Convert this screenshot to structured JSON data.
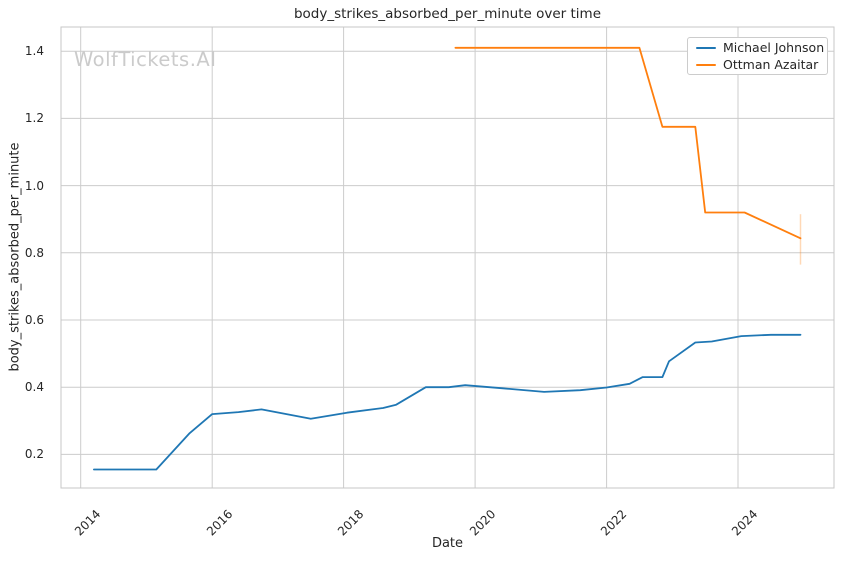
{
  "watermark": "WolfTickets.AI",
  "chart_data": {
    "type": "line",
    "title": "body_strikes_absorbed_per_minute over time",
    "xlabel": "Date",
    "ylabel": "body_strikes_absorbed_per_minute",
    "xlim": [
      2013.7,
      2025.46
    ],
    "ylim": [
      0.1,
      1.472
    ],
    "x_ticks": [
      2014,
      2016,
      2018,
      2020,
      2022,
      2024
    ],
    "x_tick_labels": [
      "2014",
      "2016",
      "2018",
      "2020",
      "2022",
      "2024"
    ],
    "y_ticks": [
      0.2,
      0.4,
      0.6,
      0.8,
      1.0,
      1.2,
      1.4
    ],
    "y_tick_labels": [
      "0.2",
      "0.4",
      "0.6",
      "0.8",
      "1.0",
      "1.2",
      "1.4"
    ],
    "grid": true,
    "legend_position": "upper right",
    "style": {
      "grid_color": "#cccccc",
      "spine_color": "#c7c7c7",
      "text_color": "#262626",
      "watermark_color": "#cbcbcb",
      "background": "#ffffff"
    },
    "series": [
      {
        "name": "Michael Johnson",
        "color": "#1f77b4",
        "points": [
          [
            2014.2,
            0.155
          ],
          [
            2015.15,
            0.155
          ],
          [
            2015.65,
            0.262
          ],
          [
            2016.0,
            0.32
          ],
          [
            2016.4,
            0.326
          ],
          [
            2016.75,
            0.334
          ],
          [
            2017.5,
            0.306
          ],
          [
            2018.05,
            0.324
          ],
          [
            2018.6,
            0.338
          ],
          [
            2018.8,
            0.348
          ],
          [
            2019.25,
            0.4
          ],
          [
            2019.6,
            0.4
          ],
          [
            2019.85,
            0.406
          ],
          [
            2020.4,
            0.397
          ],
          [
            2021.05,
            0.386
          ],
          [
            2021.6,
            0.391
          ],
          [
            2022.0,
            0.399
          ],
          [
            2022.35,
            0.41
          ],
          [
            2022.55,
            0.43
          ],
          [
            2022.85,
            0.43
          ],
          [
            2022.95,
            0.477
          ],
          [
            2023.35,
            0.533
          ],
          [
            2023.6,
            0.536
          ],
          [
            2024.05,
            0.552
          ],
          [
            2024.5,
            0.556
          ],
          [
            2024.95,
            0.556
          ]
        ]
      },
      {
        "name": "Ottman Azaitar",
        "color": "#ff7f0e",
        "points": [
          [
            2019.7,
            1.41
          ],
          [
            2022.5,
            1.41
          ],
          [
            2022.85,
            1.175
          ],
          [
            2023.35,
            1.175
          ],
          [
            2023.5,
            0.92
          ],
          [
            2024.1,
            0.92
          ],
          [
            2024.95,
            0.843
          ]
        ],
        "error_bars": [
          {
            "x": 2024.95,
            "low": 0.765,
            "high": 0.915
          }
        ],
        "error_color": "rgba(255,127,14,0.3)"
      }
    ]
  }
}
